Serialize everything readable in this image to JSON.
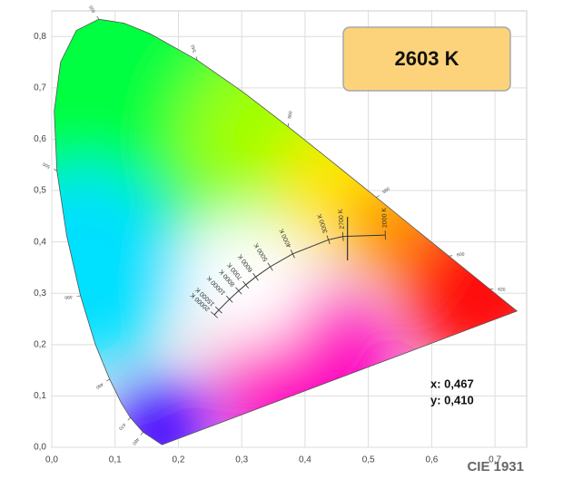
{
  "chart_data": {
    "type": "chromaticity",
    "badge": "2603 K",
    "readout": [
      "x: 0,467",
      "y: 0,410"
    ],
    "footer": "CIE 1931",
    "xlim": [
      0,
      0.75
    ],
    "ylim": [
      0,
      0.85
    ],
    "xticks": [
      {
        "value": 0,
        "label": "0,0"
      },
      {
        "value": 0.1,
        "label": "0,1"
      },
      {
        "value": 0.2,
        "label": "0,2"
      },
      {
        "value": 0.3,
        "label": "0,3"
      },
      {
        "value": 0.4,
        "label": "0,4"
      },
      {
        "value": 0.5,
        "label": "0,5"
      },
      {
        "value": 0.6,
        "label": "0,6"
      },
      {
        "value": 0.7,
        "label": "0,7"
      }
    ],
    "yticks": [
      {
        "value": 0,
        "label": "0,0"
      },
      {
        "value": 0.1,
        "label": "0,1"
      },
      {
        "value": 0.2,
        "label": "0,2"
      },
      {
        "value": 0.3,
        "label": "0,3"
      },
      {
        "value": 0.4,
        "label": "0,4"
      },
      {
        "value": 0.5,
        "label": "0,5"
      },
      {
        "value": 0.6,
        "label": "0,6"
      },
      {
        "value": 0.7,
        "label": "0,7"
      },
      {
        "value": 0.8,
        "label": "0,8"
      }
    ],
    "grid": true,
    "locus": {
      "x": [
        0.1741,
        0.144,
        0.1241,
        0.1096,
        0.0913,
        0.0687,
        0.0454,
        0.0235,
        0.0082,
        0.0039,
        0.0139,
        0.0389,
        0.0743,
        0.1142,
        0.1547,
        0.2296,
        0.3016,
        0.3731,
        0.4441,
        0.5125,
        0.5752,
        0.627,
        0.6658,
        0.6915,
        0.7347
      ],
      "y": [
        0.005,
        0.0297,
        0.0578,
        0.0868,
        0.1327,
        0.2007,
        0.295,
        0.4127,
        0.5384,
        0.6548,
        0.7502,
        0.812,
        0.8338,
        0.8262,
        0.8059,
        0.7543,
        0.6923,
        0.6245,
        0.5547,
        0.4866,
        0.4242,
        0.3725,
        0.334,
        0.3083,
        0.2653
      ],
      "labels": [
        null,
        "460",
        "470",
        null,
        "480",
        null,
        "490",
        null,
        "500",
        null,
        null,
        null,
        "520",
        null,
        null,
        "540",
        null,
        "560",
        null,
        "580",
        null,
        "600",
        null,
        "620",
        null
      ]
    },
    "planckian": {
      "x": [
        0.5267,
        0.4599,
        0.4369,
        0.3805,
        0.3451,
        0.3221,
        0.3064,
        0.2952,
        0.2807,
        0.2637,
        0.2567
      ],
      "y": [
        0.4133,
        0.4106,
        0.4041,
        0.3768,
        0.3516,
        0.3318,
        0.3166,
        0.3048,
        0.2884,
        0.2674,
        0.258
      ],
      "labels": [
        "2000 K",
        "2700 K",
        "3000 K",
        "4000 K",
        "5000 K",
        "6000 K",
        "7000 K",
        "8000 K",
        "10000 K",
        "15000 K",
        "20000 K"
      ]
    },
    "point": {
      "x": 0.467,
      "y": 0.41
    }
  }
}
